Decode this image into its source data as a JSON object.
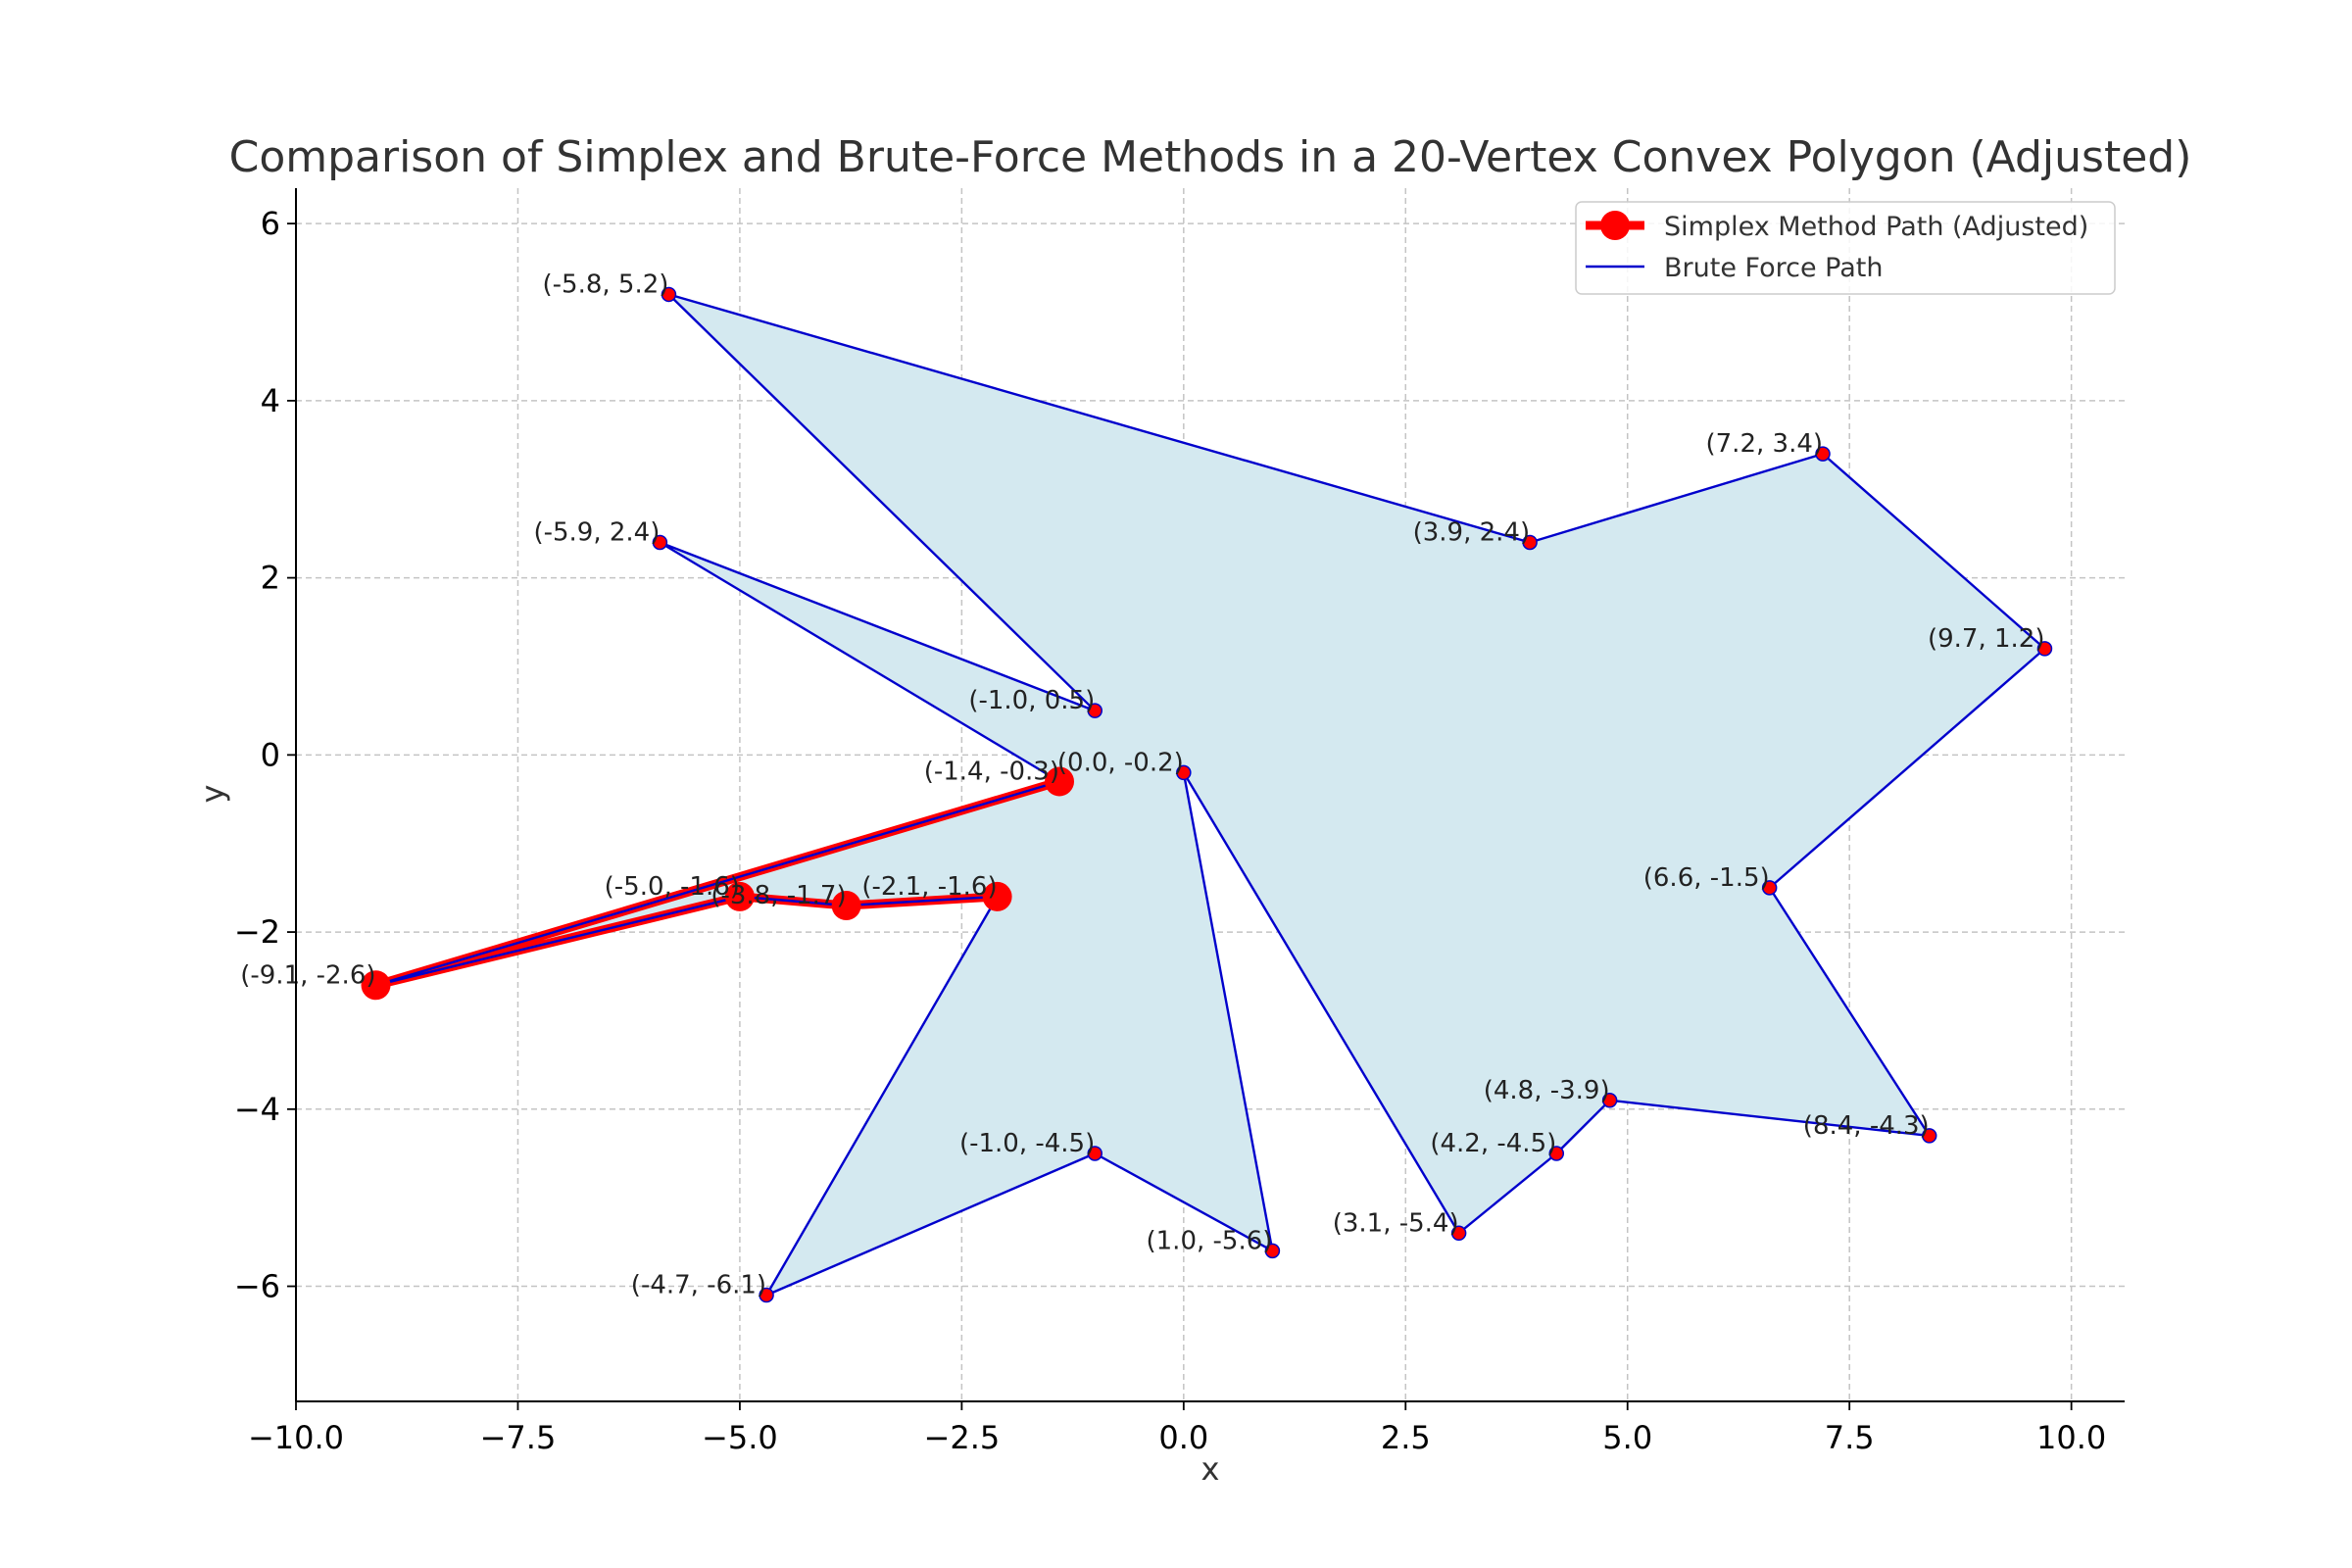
{
  "chart_data": {
    "type": "line",
    "title": "Comparison of Simplex and Brute-Force Methods in a 20-Vertex Convex Polygon (Adjusted)",
    "xlabel": "x",
    "ylabel": "y",
    "xlim": [
      -10.0,
      10.6
    ],
    "ylim": [
      -7.3,
      6.4
    ],
    "xticks": [
      -10.0,
      -7.5,
      -5.0,
      -2.5,
      0.0,
      2.5,
      5.0,
      7.5,
      10.0
    ],
    "xtick_labels": [
      "−10.0",
      "−7.5",
      "−5.0",
      "−2.5",
      "0.0",
      "2.5",
      "5.0",
      "7.5",
      "10.0"
    ],
    "yticks": [
      -6,
      -4,
      -2,
      0,
      2,
      4,
      6
    ],
    "ytick_labels": [
      "−6",
      "−4",
      "−2",
      "0",
      "2",
      "4",
      "6"
    ],
    "grid": true,
    "legend_position": "top-right",
    "polygon_fill_color": "#d4e9f0",
    "vertices": [
      {
        "x": -5.8,
        "y": 5.2,
        "label": "(-5.8, 5.2)"
      },
      {
        "x": 3.9,
        "y": 2.4,
        "label": "(3.9, 2.4)"
      },
      {
        "x": 7.2,
        "y": 3.4,
        "label": "(7.2, 3.4)"
      },
      {
        "x": 9.7,
        "y": 1.2,
        "label": "(9.7, 1.2)"
      },
      {
        "x": 6.6,
        "y": -1.5,
        "label": "(6.6, -1.5)"
      },
      {
        "x": 8.4,
        "y": -4.3,
        "label": "(8.4, -4.3)"
      },
      {
        "x": 4.8,
        "y": -3.9,
        "label": "(4.8, -3.9)"
      },
      {
        "x": 4.2,
        "y": -4.5,
        "label": "(4.2, -4.5)"
      },
      {
        "x": 3.1,
        "y": -5.4,
        "label": "(3.1, -5.4)"
      },
      {
        "x": 0.0,
        "y": -0.2,
        "label": "(0.0, -0.2)"
      },
      {
        "x": 1.0,
        "y": -5.6,
        "label": "(1.0, -5.6)"
      },
      {
        "x": -1.0,
        "y": -4.5,
        "label": "(-1.0, -4.5)"
      },
      {
        "x": -4.7,
        "y": -6.1,
        "label": "(-4.7, -6.1)"
      },
      {
        "x": -2.1,
        "y": -1.6,
        "label": "(-2.1, -1.6)"
      },
      {
        "x": -3.8,
        "y": -1.7,
        "label": "(-3.8, -1.7)"
      },
      {
        "x": -5.0,
        "y": -1.6,
        "label": "(-5.0, -1.6)"
      },
      {
        "x": -9.1,
        "y": -2.6,
        "label": "(-9.1, -2.6)"
      },
      {
        "x": -1.4,
        "y": -0.3,
        "label": "(-1.4, -0.3)"
      },
      {
        "x": -5.9,
        "y": 2.4,
        "label": "(-5.9, 2.4)"
      },
      {
        "x": -1.0,
        "y": 0.5,
        "label": "(-1.0, 0.5)"
      }
    ],
    "series": [
      {
        "name": "Simplex Method Path (Adjusted)",
        "color": "#ff0000",
        "x": [
          -2.1,
          -3.8,
          -5.0,
          -9.1,
          -1.4
        ],
        "y": [
          -1.6,
          -1.7,
          -1.6,
          -2.6,
          -0.3
        ]
      },
      {
        "name": "Brute Force Path",
        "color": "#0000cc",
        "x": [
          -5.8,
          3.9,
          7.2,
          9.7,
          6.6,
          8.4,
          4.8,
          4.2,
          3.1,
          0.0,
          1.0,
          -1.0,
          -4.7,
          -2.1,
          -3.8,
          -5.0,
          -9.1,
          -1.4,
          -5.9,
          -1.0,
          -5.8
        ],
        "y": [
          5.2,
          2.4,
          3.4,
          1.2,
          -1.5,
          -4.3,
          -3.9,
          -4.5,
          -5.4,
          -0.2,
          -5.6,
          -4.5,
          -6.1,
          -1.6,
          -1.7,
          -1.6,
          -2.6,
          -0.3,
          2.4,
          0.5,
          5.2
        ]
      }
    ]
  }
}
